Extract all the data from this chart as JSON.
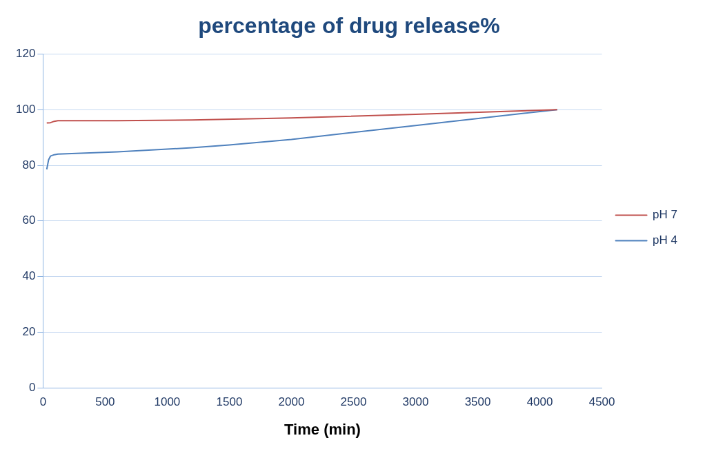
{
  "chart_data": {
    "type": "line",
    "title": "percentage of drug release%",
    "xlabel": "Time (min)",
    "series": [
      {
        "name": "pH 7",
        "color": "#c0504d",
        "x": [
          30,
          60,
          90,
          120,
          600,
          1200,
          2000,
          3000,
          4140
        ],
        "values": [
          95.2,
          95.3,
          95.8,
          96,
          96,
          96.3,
          97,
          98.3,
          100
        ]
      },
      {
        "name": "pH 4",
        "color": "#4f81bd",
        "x": [
          30,
          45,
          60,
          90,
          120,
          600,
          1200,
          1500,
          2000,
          3000,
          4140
        ],
        "values": [
          78.5,
          82,
          83.3,
          83.8,
          84,
          84.8,
          86.3,
          87.3,
          89.3,
          94.3,
          100
        ]
      }
    ],
    "xlim": [
      0,
      4500
    ],
    "xticks": [
      0,
      500,
      1000,
      1500,
      2000,
      2500,
      3000,
      3500,
      4000,
      4500
    ],
    "ylim": [
      0,
      120
    ],
    "yticks": [
      0,
      20,
      40,
      60,
      80,
      100,
      120
    ],
    "grid": "y",
    "legend": "right",
    "marker": "none",
    "line_style": "solid"
  }
}
